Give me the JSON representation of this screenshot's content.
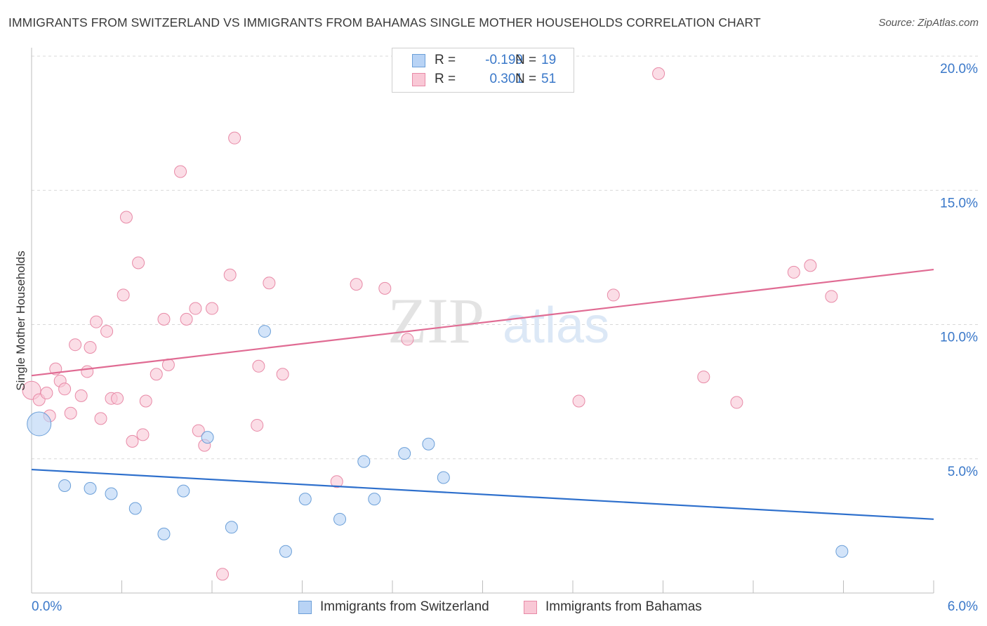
{
  "header": {
    "title": "IMMIGRANTS FROM SWITZERLAND VS IMMIGRANTS FROM BAHAMAS SINGLE MOTHER HOUSEHOLDS CORRELATION CHART",
    "source": "Source: ZipAtlas.com"
  },
  "watermark": {
    "zip": "ZIP",
    "atlas": "atlas"
  },
  "legend_stats": [
    {
      "r_label": "R =",
      "r_value": "-0.199",
      "n_label": "N =",
      "n_value": "19"
    },
    {
      "r_label": "R =",
      "r_value": "0.301",
      "n_label": "N =",
      "n_value": "51"
    }
  ],
  "colors": {
    "blue_fill": "#b8d3f5",
    "blue_stroke": "#6b9fd8",
    "blue_line": "#2d6fcc",
    "pink_fill": "#f9c8d6",
    "pink_stroke": "#e88aa7",
    "pink_line": "#e06b93",
    "tick_label": "#3a78c9",
    "grid": "#d8d8d8"
  },
  "chart_data": {
    "type": "scatter",
    "title": "IMMIGRANTS FROM SWITZERLAND VS IMMIGRANTS FROM BAHAMAS SINGLE MOTHER HOUSEHOLDS CORRELATION CHART",
    "xlabel": "",
    "ylabel": "Single Mother Households",
    "xlim": [
      0,
      6
    ],
    "ylim": [
      0,
      20
    ],
    "x_tick_labels": [
      "0.0%",
      "6.0%"
    ],
    "y_ticks": [
      5,
      10,
      15,
      20
    ],
    "y_tick_labels": [
      "5.0%",
      "10.0%",
      "15.0%",
      "20.0%"
    ],
    "grid": true,
    "legend_position": "bottom",
    "series": [
      {
        "name": "Immigrants from Switzerland",
        "color": "#b8d3f5",
        "trend": [
          [
            0,
            4.6
          ],
          [
            6,
            2.75
          ]
        ],
        "points": [
          [
            0.05,
            6.3,
            "large"
          ],
          [
            0.22,
            4.0
          ],
          [
            0.39,
            3.9
          ],
          [
            0.53,
            3.7
          ],
          [
            0.69,
            3.15
          ],
          [
            0.88,
            2.2
          ],
          [
            1.01,
            3.8
          ],
          [
            1.17,
            5.8
          ],
          [
            1.33,
            2.45
          ],
          [
            1.55,
            9.75
          ],
          [
            1.69,
            1.55
          ],
          [
            1.82,
            3.5
          ],
          [
            2.05,
            2.75
          ],
          [
            2.21,
            4.9
          ],
          [
            2.28,
            3.5
          ],
          [
            2.48,
            5.2
          ],
          [
            2.64,
            5.55
          ],
          [
            2.74,
            4.3
          ],
          [
            5.39,
            1.55
          ]
        ]
      },
      {
        "name": "Immigrants from Bahamas",
        "color": "#f9c8d6",
        "trend": [
          [
            0,
            8.1
          ],
          [
            6,
            12.05
          ]
        ],
        "points": [
          [
            0.0,
            7.55,
            "medium"
          ],
          [
            0.05,
            7.2
          ],
          [
            0.1,
            7.45
          ],
          [
            0.12,
            6.6
          ],
          [
            0.16,
            8.35
          ],
          [
            0.19,
            7.9
          ],
          [
            0.22,
            7.6
          ],
          [
            0.26,
            6.7
          ],
          [
            0.29,
            9.25
          ],
          [
            0.33,
            7.35
          ],
          [
            0.37,
            8.25
          ],
          [
            0.39,
            9.15
          ],
          [
            0.43,
            10.1
          ],
          [
            0.46,
            6.5
          ],
          [
            0.5,
            9.75
          ],
          [
            0.53,
            7.25
          ],
          [
            0.57,
            7.25
          ],
          [
            0.61,
            11.1
          ],
          [
            0.63,
            14.0
          ],
          [
            0.67,
            5.65
          ],
          [
            0.71,
            12.3
          ],
          [
            0.74,
            5.9
          ],
          [
            0.76,
            7.15
          ],
          [
            0.83,
            8.15
          ],
          [
            0.88,
            10.2
          ],
          [
            0.91,
            8.5
          ],
          [
            0.99,
            15.7
          ],
          [
            1.03,
            10.2
          ],
          [
            1.09,
            10.6
          ],
          [
            1.11,
            6.05
          ],
          [
            1.15,
            5.5
          ],
          [
            1.2,
            10.6
          ],
          [
            1.27,
            0.7
          ],
          [
            1.32,
            11.85
          ],
          [
            1.35,
            16.95
          ],
          [
            1.5,
            6.25
          ],
          [
            1.51,
            8.45
          ],
          [
            1.58,
            11.55
          ],
          [
            1.67,
            8.15
          ],
          [
            2.03,
            4.15
          ],
          [
            2.16,
            11.5
          ],
          [
            2.35,
            11.35
          ],
          [
            2.5,
            9.45
          ],
          [
            3.64,
            7.15
          ],
          [
            3.87,
            11.1
          ],
          [
            4.17,
            19.35
          ],
          [
            4.47,
            8.05
          ],
          [
            4.69,
            7.1
          ],
          [
            5.07,
            11.95
          ],
          [
            5.18,
            12.2
          ],
          [
            5.32,
            11.05
          ]
        ]
      }
    ]
  }
}
